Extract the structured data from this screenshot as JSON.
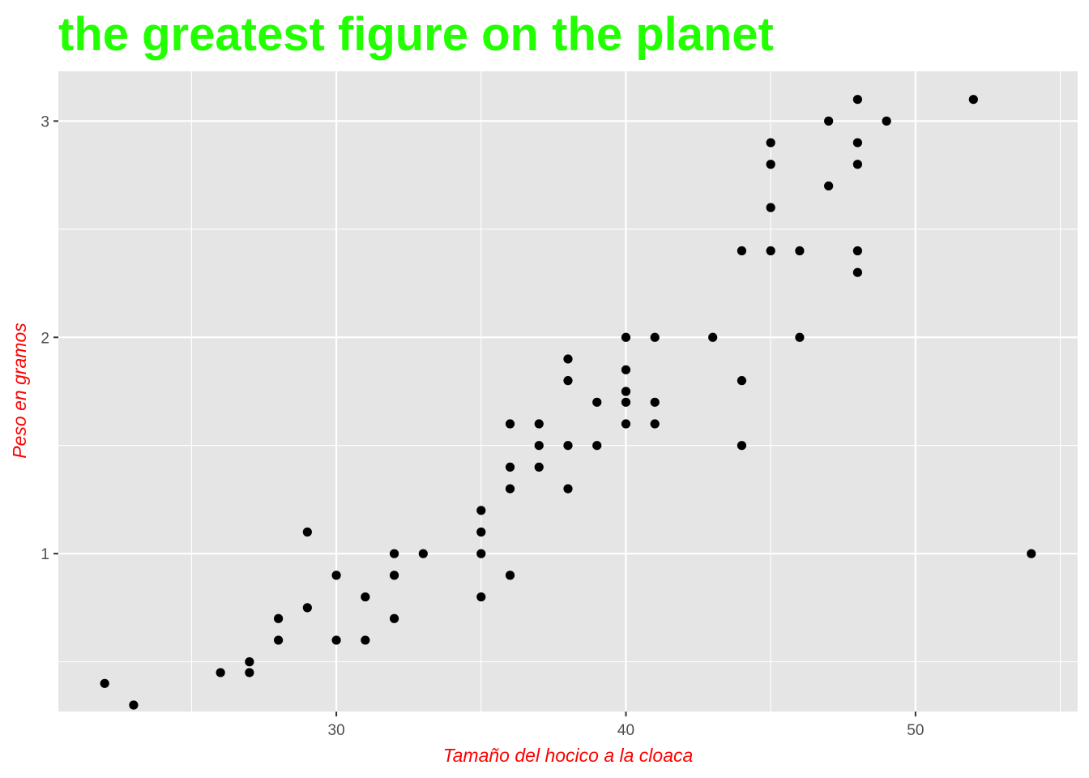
{
  "colors": {
    "title": "#22ff00",
    "axis_title": "#ff0000",
    "panel": "#e5e5e5",
    "grid": "#ffffff",
    "point": "#000000",
    "tick_text": "#4d4d4d"
  },
  "chart_data": {
    "type": "scatter",
    "title": "the greatest figure on the planet",
    "xlabel": "Tamaño del hocico a la cloaca",
    "ylabel": "Peso en gramos",
    "xlim": [
      20.4,
      55.6
    ],
    "ylim": [
      0.27,
      3.23
    ],
    "x_ticks": [
      30,
      40,
      50
    ],
    "x_minor_ticks": [
      25,
      35,
      45,
      55
    ],
    "y_ticks": [
      1,
      2,
      3
    ],
    "y_minor_ticks": [
      0.5,
      1.5,
      2.5
    ],
    "grid": true,
    "legend": "none",
    "points": [
      [
        22,
        0.4
      ],
      [
        23,
        0.3
      ],
      [
        26,
        0.45
      ],
      [
        27,
        0.5
      ],
      [
        27,
        0.45
      ],
      [
        28,
        0.7
      ],
      [
        28,
        0.6
      ],
      [
        29,
        1.1
      ],
      [
        29,
        0.75
      ],
      [
        30,
        0.9
      ],
      [
        30,
        0.6
      ],
      [
        31,
        0.8
      ],
      [
        31,
        0.6
      ],
      [
        32,
        1.0
      ],
      [
        32,
        0.9
      ],
      [
        32,
        0.7
      ],
      [
        33,
        1.0
      ],
      [
        35,
        1.2
      ],
      [
        35,
        1.1
      ],
      [
        35,
        1.0
      ],
      [
        35,
        0.8
      ],
      [
        36,
        1.6
      ],
      [
        36,
        1.4
      ],
      [
        36,
        1.3
      ],
      [
        36,
        0.9
      ],
      [
        37,
        1.6
      ],
      [
        37,
        1.5
      ],
      [
        37,
        1.4
      ],
      [
        38,
        1.9
      ],
      [
        38,
        1.8
      ],
      [
        38,
        1.5
      ],
      [
        38,
        1.3
      ],
      [
        39,
        1.7
      ],
      [
        39,
        1.5
      ],
      [
        40,
        2.0
      ],
      [
        40,
        1.85
      ],
      [
        40,
        1.75
      ],
      [
        40,
        1.7
      ],
      [
        40,
        1.6
      ],
      [
        41,
        2.0
      ],
      [
        41,
        1.7
      ],
      [
        41,
        1.6
      ],
      [
        43,
        2.0
      ],
      [
        44,
        2.4
      ],
      [
        44,
        1.8
      ],
      [
        44,
        1.5
      ],
      [
        45,
        2.9
      ],
      [
        45,
        2.8
      ],
      [
        45,
        2.6
      ],
      [
        45,
        2.4
      ],
      [
        46,
        2.4
      ],
      [
        46,
        2.0
      ],
      [
        47,
        3.0
      ],
      [
        47,
        2.7
      ],
      [
        48,
        3.1
      ],
      [
        48,
        2.9
      ],
      [
        48,
        2.8
      ],
      [
        48,
        2.4
      ],
      [
        48,
        2.3
      ],
      [
        49,
        3.0
      ],
      [
        52,
        3.1
      ],
      [
        54,
        1.0
      ]
    ]
  }
}
